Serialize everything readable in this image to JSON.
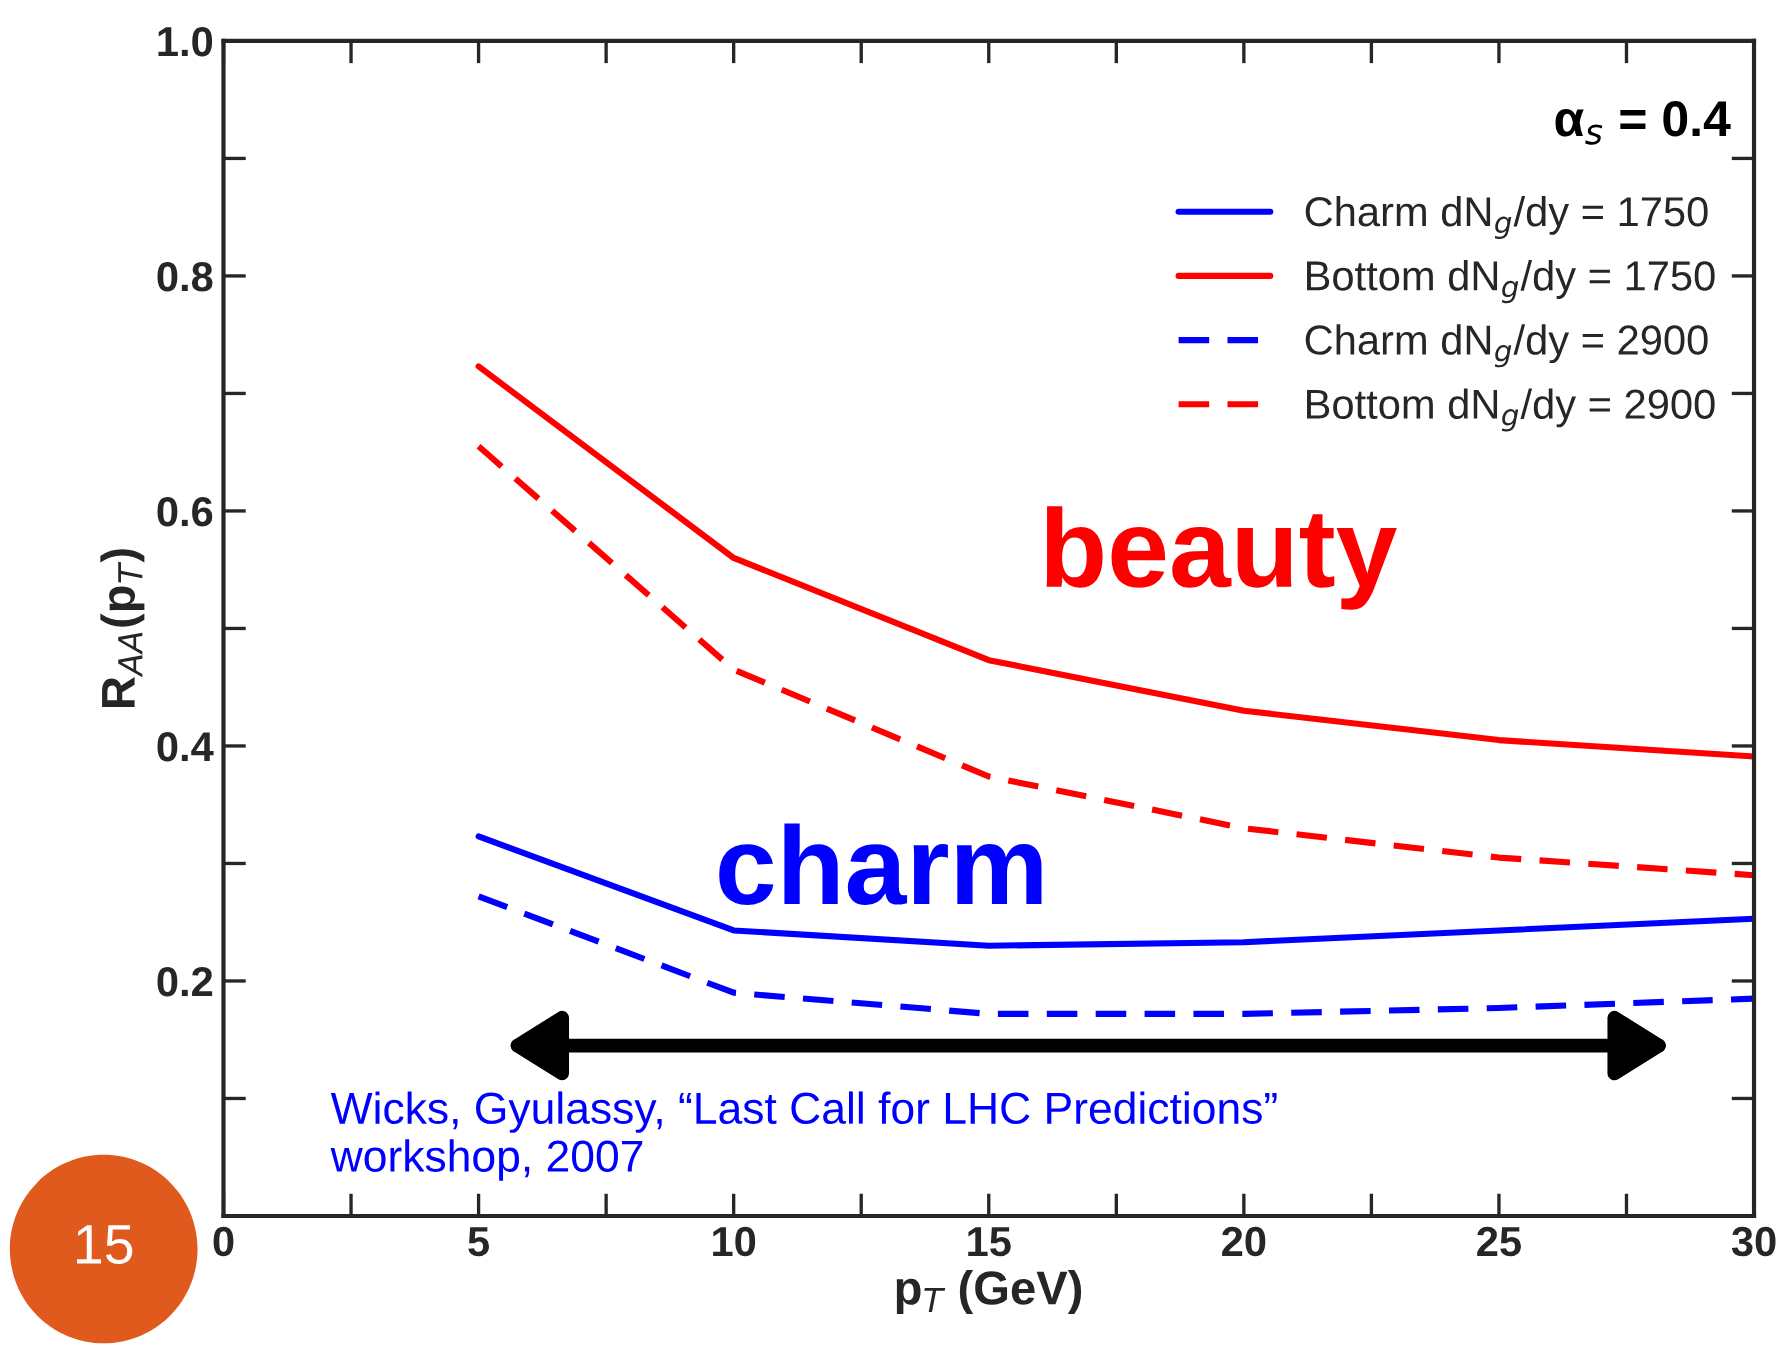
{
  "chart_data": {
    "type": "line",
    "xlabel": "p$_{T}$ (GeV)",
    "ylabel": "R$_{AA}$(p$_{T}$)",
    "x": [
      5,
      10,
      15,
      20,
      25,
      30
    ],
    "series": [
      {
        "name": "Charm dN$_{g}$/dy = 1750",
        "color": "#0000ff",
        "line_style": "solid",
        "values": [
          0.323,
          0.243,
          0.23,
          0.233,
          0.243,
          0.253
        ]
      },
      {
        "name": "Bottom dN$_{g}$/dy = 1750",
        "color": "#ff0000",
        "line_style": "solid",
        "values": [
          0.723,
          0.56,
          0.473,
          0.43,
          0.405,
          0.391
        ]
      },
      {
        "name": "Charm dN$_{g}$/dy = 2900",
        "color": "#0000ff",
        "line_style": "dashed",
        "values": [
          0.272,
          0.19,
          0.172,
          0.172,
          0.177,
          0.185
        ]
      },
      {
        "name": "Bottom dN$_{g}$/dy = 2900",
        "color": "#ff0000",
        "line_style": "dashed",
        "values": [
          0.655,
          0.465,
          0.374,
          0.33,
          0.305,
          0.29
        ]
      }
    ],
    "xlim": [
      0,
      30
    ],
    "ylim": [
      0,
      1.0
    ],
    "xticks": [
      0,
      {
        "value": 2.5,
        "label": null
      },
      5,
      {
        "value": 7.5,
        "label": null
      },
      10,
      {
        "value": 12.5,
        "label": null
      },
      15,
      {
        "value": 17.5,
        "label": null
      },
      20,
      {
        "value": 22.5,
        "label": null
      },
      25,
      {
        "value": 27.5,
        "label": null
      },
      30
    ],
    "yticks": [
      {
        "value": 0.1,
        "label": null
      },
      0.2,
      {
        "value": 0.3,
        "label": null
      },
      0.4,
      {
        "value": 0.5,
        "label": null
      },
      0.6,
      {
        "value": 0.7,
        "label": null
      },
      0.8,
      {
        "value": 0.9,
        "label": null
      },
      {
        "value": 1.0,
        "label": "1.0"
      }
    ],
    "legend": "top right",
    "grid": false,
    "annotations": [
      "α$_{s}$ = 0.4",
      "beauty",
      "charm",
      "Wicks, Gyulassy, “Last Call for LHC Predictions”\nworkshop, 2007",
      "15"
    ]
  }
}
